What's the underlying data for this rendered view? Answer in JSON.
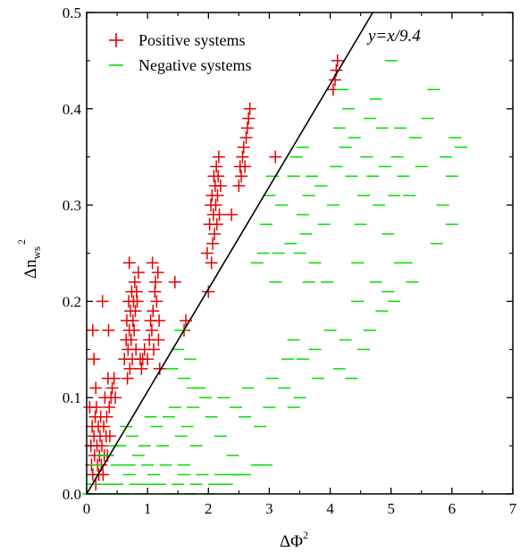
{
  "chart_data": {
    "type": "scatter",
    "xlabel": "ΔΦ",
    "xlabel_sup": "2",
    "ylabel": "Δn",
    "ylabel_sub": "ws",
    "ylabel_sup": "2",
    "xlim": [
      0,
      7
    ],
    "ylim": [
      0,
      0.5
    ],
    "x_ticks": [
      0,
      1,
      2,
      3,
      4,
      5,
      6,
      7
    ],
    "y_ticks": [
      0.0,
      0.1,
      0.2,
      0.3,
      0.4,
      0.5
    ],
    "x_tick_labels": [
      "0",
      "1",
      "2",
      "3",
      "4",
      "5",
      "6",
      "7"
    ],
    "y_tick_labels": [
      "0.0",
      "0.1",
      "0.2",
      "0.3",
      "0.4",
      "0.5"
    ],
    "grid": false,
    "legend_position": "top-left",
    "line": {
      "label": "y=x/9.4",
      "slope_inverse": 9.4,
      "color": "#000000"
    },
    "series": [
      {
        "name": "Positive systems",
        "marker": "plus",
        "color": "#e60000",
        "points": [
          [
            0.05,
            0.09
          ],
          [
            0.07,
            0.05
          ],
          [
            0.08,
            0.03
          ],
          [
            0.09,
            0.07
          ],
          [
            0.1,
            0.02
          ],
          [
            0.1,
            0.17
          ],
          [
            0.12,
            0.14
          ],
          [
            0.12,
            0.06
          ],
          [
            0.13,
            0.04
          ],
          [
            0.14,
            0.08
          ],
          [
            0.15,
            0.11
          ],
          [
            0.15,
            0.01
          ],
          [
            0.16,
            0.09
          ],
          [
            0.17,
            0.05
          ],
          [
            0.18,
            0.03
          ],
          [
            0.19,
            0.07
          ],
          [
            0.2,
            0.02
          ],
          [
            0.21,
            0.04
          ],
          [
            0.22,
            0.06
          ],
          [
            0.23,
            0.08
          ],
          [
            0.24,
            0.03
          ],
          [
            0.25,
            0.05
          ],
          [
            0.26,
            0.2
          ],
          [
            0.27,
            0.02
          ],
          [
            0.28,
            0.07
          ],
          [
            0.29,
            0.04
          ],
          [
            0.3,
            0.1
          ],
          [
            0.32,
            0.06
          ],
          [
            0.33,
            0.08
          ],
          [
            0.34,
            0.04
          ],
          [
            0.35,
            0.12
          ],
          [
            0.36,
            0.17
          ],
          [
            0.37,
            0.09
          ],
          [
            0.38,
            0.06
          ],
          [
            0.4,
            0.1
          ],
          [
            0.42,
            0.11
          ],
          [
            0.45,
            0.12
          ],
          [
            0.47,
            0.1
          ],
          [
            0.62,
            0.14
          ],
          [
            0.65,
            0.16
          ],
          [
            0.66,
            0.18
          ],
          [
            0.67,
            0.12
          ],
          [
            0.68,
            0.15
          ],
          [
            0.69,
            0.2
          ],
          [
            0.7,
            0.17
          ],
          [
            0.7,
            0.24
          ],
          [
            0.71,
            0.13
          ],
          [
            0.72,
            0.19
          ],
          [
            0.73,
            0.16
          ],
          [
            0.74,
            0.21
          ],
          [
            0.75,
            0.14
          ],
          [
            0.76,
            0.18
          ],
          [
            0.77,
            0.2
          ],
          [
            0.78,
            0.17
          ],
          [
            0.79,
            0.22
          ],
          [
            0.8,
            0.19
          ],
          [
            0.81,
            0.15
          ],
          [
            0.82,
            0.21
          ],
          [
            0.83,
            0.2
          ],
          [
            0.85,
            0.23
          ],
          [
            0.88,
            0.14
          ],
          [
            0.9,
            0.13
          ],
          [
            0.92,
            0.14
          ],
          [
            0.95,
            0.15
          ],
          [
            1.0,
            0.14
          ],
          [
            1.03,
            0.16
          ],
          [
            1.05,
            0.18
          ],
          [
            1.07,
            0.17
          ],
          [
            1.08,
            0.24
          ],
          [
            1.09,
            0.19
          ],
          [
            1.1,
            0.15
          ],
          [
            1.12,
            0.21
          ],
          [
            1.13,
            0.22
          ],
          [
            1.15,
            0.2
          ],
          [
            1.17,
            0.23
          ],
          [
            1.18,
            0.16
          ],
          [
            1.19,
            0.18
          ],
          [
            1.2,
            0.13
          ],
          [
            1.45,
            0.22
          ],
          [
            1.63,
            0.18
          ],
          [
            1.6,
            0.17
          ],
          [
            1.98,
            0.25
          ],
          [
            2.0,
            0.21
          ],
          [
            2.02,
            0.28
          ],
          [
            2.04,
            0.3
          ],
          [
            2.05,
            0.24
          ],
          [
            2.06,
            0.31
          ],
          [
            2.07,
            0.26
          ],
          [
            2.08,
            0.29
          ],
          [
            2.09,
            0.33
          ],
          [
            2.1,
            0.27
          ],
          [
            2.11,
            0.32
          ],
          [
            2.12,
            0.3
          ],
          [
            2.13,
            0.34
          ],
          [
            2.14,
            0.28
          ],
          [
            2.15,
            0.31
          ],
          [
            2.16,
            0.33
          ],
          [
            2.17,
            0.35
          ],
          [
            2.18,
            0.29
          ],
          [
            2.2,
            0.32
          ],
          [
            2.38,
            0.29
          ],
          [
            2.5,
            0.32
          ],
          [
            2.52,
            0.34
          ],
          [
            2.54,
            0.33
          ],
          [
            2.56,
            0.35
          ],
          [
            2.58,
            0.36
          ],
          [
            2.6,
            0.34
          ],
          [
            2.62,
            0.37
          ],
          [
            2.64,
            0.38
          ],
          [
            2.66,
            0.39
          ],
          [
            2.68,
            0.4
          ],
          [
            3.1,
            0.35
          ],
          [
            4.05,
            0.42
          ],
          [
            4.08,
            0.43
          ],
          [
            4.1,
            0.44
          ],
          [
            4.12,
            0.45
          ]
        ]
      },
      {
        "name": "Negative systems",
        "marker": "dash",
        "color": "#00e000",
        "points": [
          [
            0.03,
            0.0
          ],
          [
            0.1,
            0.01
          ],
          [
            0.2,
            0.0
          ],
          [
            0.3,
            0.01
          ],
          [
            0.4,
            0.0
          ],
          [
            0.5,
            0.01
          ],
          [
            0.6,
            0.0
          ],
          [
            0.7,
            0.02
          ],
          [
            0.8,
            0.01
          ],
          [
            0.9,
            0.0
          ],
          [
            1.0,
            0.01
          ],
          [
            1.1,
            0.02
          ],
          [
            1.2,
            0.01
          ],
          [
            1.3,
            0.03
          ],
          [
            1.4,
            0.0
          ],
          [
            1.5,
            0.01
          ],
          [
            1.6,
            0.02
          ],
          [
            1.7,
            0.0
          ],
          [
            1.8,
            0.01
          ],
          [
            1.9,
            0.02
          ],
          [
            2.0,
            0.0
          ],
          [
            2.1,
            0.01
          ],
          [
            2.2,
            0.02
          ],
          [
            2.3,
            0.01
          ],
          [
            2.4,
            0.02
          ],
          [
            2.5,
            0.02
          ],
          [
            2.6,
            0.02
          ],
          [
            2.8,
            0.03
          ],
          [
            2.95,
            0.03
          ],
          [
            0.15,
            0.03
          ],
          [
            0.35,
            0.04
          ],
          [
            0.55,
            0.05
          ],
          [
            0.75,
            0.06
          ],
          [
            0.95,
            0.05
          ],
          [
            1.15,
            0.07
          ],
          [
            1.35,
            0.08
          ],
          [
            1.55,
            0.06
          ],
          [
            1.75,
            0.09
          ],
          [
            1.95,
            0.1
          ],
          [
            0.25,
            0.04
          ],
          [
            0.45,
            0.05
          ],
          [
            0.65,
            0.07
          ],
          [
            0.85,
            0.04
          ],
          [
            1.05,
            0.08
          ],
          [
            1.25,
            0.05
          ],
          [
            1.45,
            0.09
          ],
          [
            1.65,
            0.07
          ],
          [
            1.85,
            0.11
          ],
          [
            2.05,
            0.08
          ],
          [
            1.4,
            0.13
          ],
          [
            1.5,
            0.15
          ],
          [
            1.55,
            0.17
          ],
          [
            1.6,
            0.12
          ],
          [
            1.7,
            0.14
          ],
          [
            1.75,
            0.11
          ],
          [
            2.25,
            0.1
          ],
          [
            2.45,
            0.09
          ],
          [
            2.65,
            0.11
          ],
          [
            2.85,
            0.07
          ],
          [
            2.8,
            0.24
          ],
          [
            2.9,
            0.25
          ],
          [
            2.95,
            0.28
          ],
          [
            3.0,
            0.31
          ],
          [
            3.05,
            0.33
          ],
          [
            3.1,
            0.22
          ],
          [
            3.15,
            0.25
          ],
          [
            3.2,
            0.3
          ],
          [
            3.05,
            0.12
          ],
          [
            3.25,
            0.11
          ],
          [
            3.3,
            0.14
          ],
          [
            3.4,
            0.16
          ],
          [
            3.5,
            0.1
          ],
          [
            3.5,
            0.25
          ],
          [
            3.55,
            0.29
          ],
          [
            3.6,
            0.27
          ],
          [
            3.65,
            0.31
          ],
          [
            3.7,
            0.33
          ],
          [
            3.75,
            0.15
          ],
          [
            3.8,
            0.12
          ],
          [
            3.35,
            0.26
          ],
          [
            3.4,
            0.33
          ],
          [
            3.45,
            0.35
          ],
          [
            3.55,
            0.36
          ],
          [
            3.65,
            0.22
          ],
          [
            3.75,
            0.24
          ],
          [
            3.85,
            0.32
          ],
          [
            3.9,
            0.28
          ],
          [
            3.95,
            0.22
          ],
          [
            3.55,
            0.14
          ],
          [
            4.05,
            0.3
          ],
          [
            4.1,
            0.34
          ],
          [
            4.15,
            0.38
          ],
          [
            4.2,
            0.42
          ],
          [
            4.25,
            0.36
          ],
          [
            4.3,
            0.4
          ],
          [
            4.35,
            0.33
          ],
          [
            4.4,
            0.37
          ],
          [
            4.45,
            0.24
          ],
          [
            4.5,
            0.28
          ],
          [
            4.55,
            0.31
          ],
          [
            4.6,
            0.35
          ],
          [
            4.65,
            0.39
          ],
          [
            4.7,
            0.33
          ],
          [
            4.75,
            0.41
          ],
          [
            4.8,
            0.3
          ],
          [
            4.85,
            0.38
          ],
          [
            4.9,
            0.34
          ],
          [
            4.95,
            0.27
          ],
          [
            5.0,
            0.45
          ],
          [
            4.0,
            0.17
          ],
          [
            4.15,
            0.13
          ],
          [
            4.25,
            0.16
          ],
          [
            4.35,
            0.12
          ],
          [
            4.45,
            0.2
          ],
          [
            4.55,
            0.15
          ],
          [
            4.65,
            0.17
          ],
          [
            4.75,
            0.22
          ],
          [
            4.85,
            0.19
          ],
          [
            4.95,
            0.21
          ],
          [
            5.05,
            0.31
          ],
          [
            5.1,
            0.35
          ],
          [
            5.15,
            0.38
          ],
          [
            5.2,
            0.33
          ],
          [
            5.25,
            0.24
          ],
          [
            5.3,
            0.31
          ],
          [
            5.4,
            0.37
          ],
          [
            5.5,
            0.34
          ],
          [
            5.6,
            0.39
          ],
          [
            5.7,
            0.42
          ],
          [
            5.75,
            0.26
          ],
          [
            5.85,
            0.3
          ],
          [
            5.9,
            0.35
          ],
          [
            6.0,
            0.33
          ],
          [
            6.05,
            0.37
          ],
          [
            6.15,
            0.36
          ],
          [
            5.05,
            0.2
          ],
          [
            5.15,
            0.24
          ],
          [
            5.35,
            0.22
          ],
          [
            6.0,
            0.28
          ],
          [
            0.5,
            0.03
          ],
          [
            1.0,
            0.03
          ],
          [
            1.8,
            0.05
          ],
          [
            2.2,
            0.06
          ],
          [
            2.6,
            0.08
          ],
          [
            3.0,
            0.09
          ],
          [
            3.4,
            0.09
          ],
          [
            0.7,
            0.03
          ],
          [
            1.6,
            0.03
          ],
          [
            2.4,
            0.04
          ]
        ]
      }
    ]
  }
}
